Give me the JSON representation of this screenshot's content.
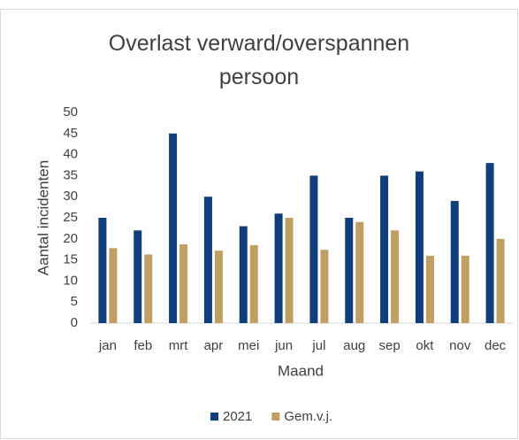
{
  "chart_data": {
    "type": "bar",
    "title": "Overlast verward/overspannen persoon",
    "x_label": "Maand",
    "y_label": "Aantal incidenten",
    "categories": [
      "jan",
      "feb",
      "mrt",
      "apr",
      "mei",
      "jun",
      "jul",
      "aug",
      "sep",
      "okt",
      "nov",
      "dec"
    ],
    "series": [
      {
        "name": "2021",
        "color": "#0f3e7a",
        "values": [
          25,
          22,
          45,
          30,
          23,
          26,
          35,
          25,
          35,
          36,
          29,
          38
        ]
      },
      {
        "name": "Gem.v.j.",
        "color": "#c0a062",
        "values": [
          17.8,
          16.3,
          18.7,
          17.2,
          18.5,
          25,
          17.4,
          24,
          22,
          16,
          16,
          20
        ]
      }
    ],
    "ylim": [
      0,
      50
    ],
    "yticks": [
      0,
      5,
      10,
      15,
      20,
      25,
      30,
      35,
      40,
      45,
      50
    ],
    "grid": false,
    "legend": "bottom"
  }
}
